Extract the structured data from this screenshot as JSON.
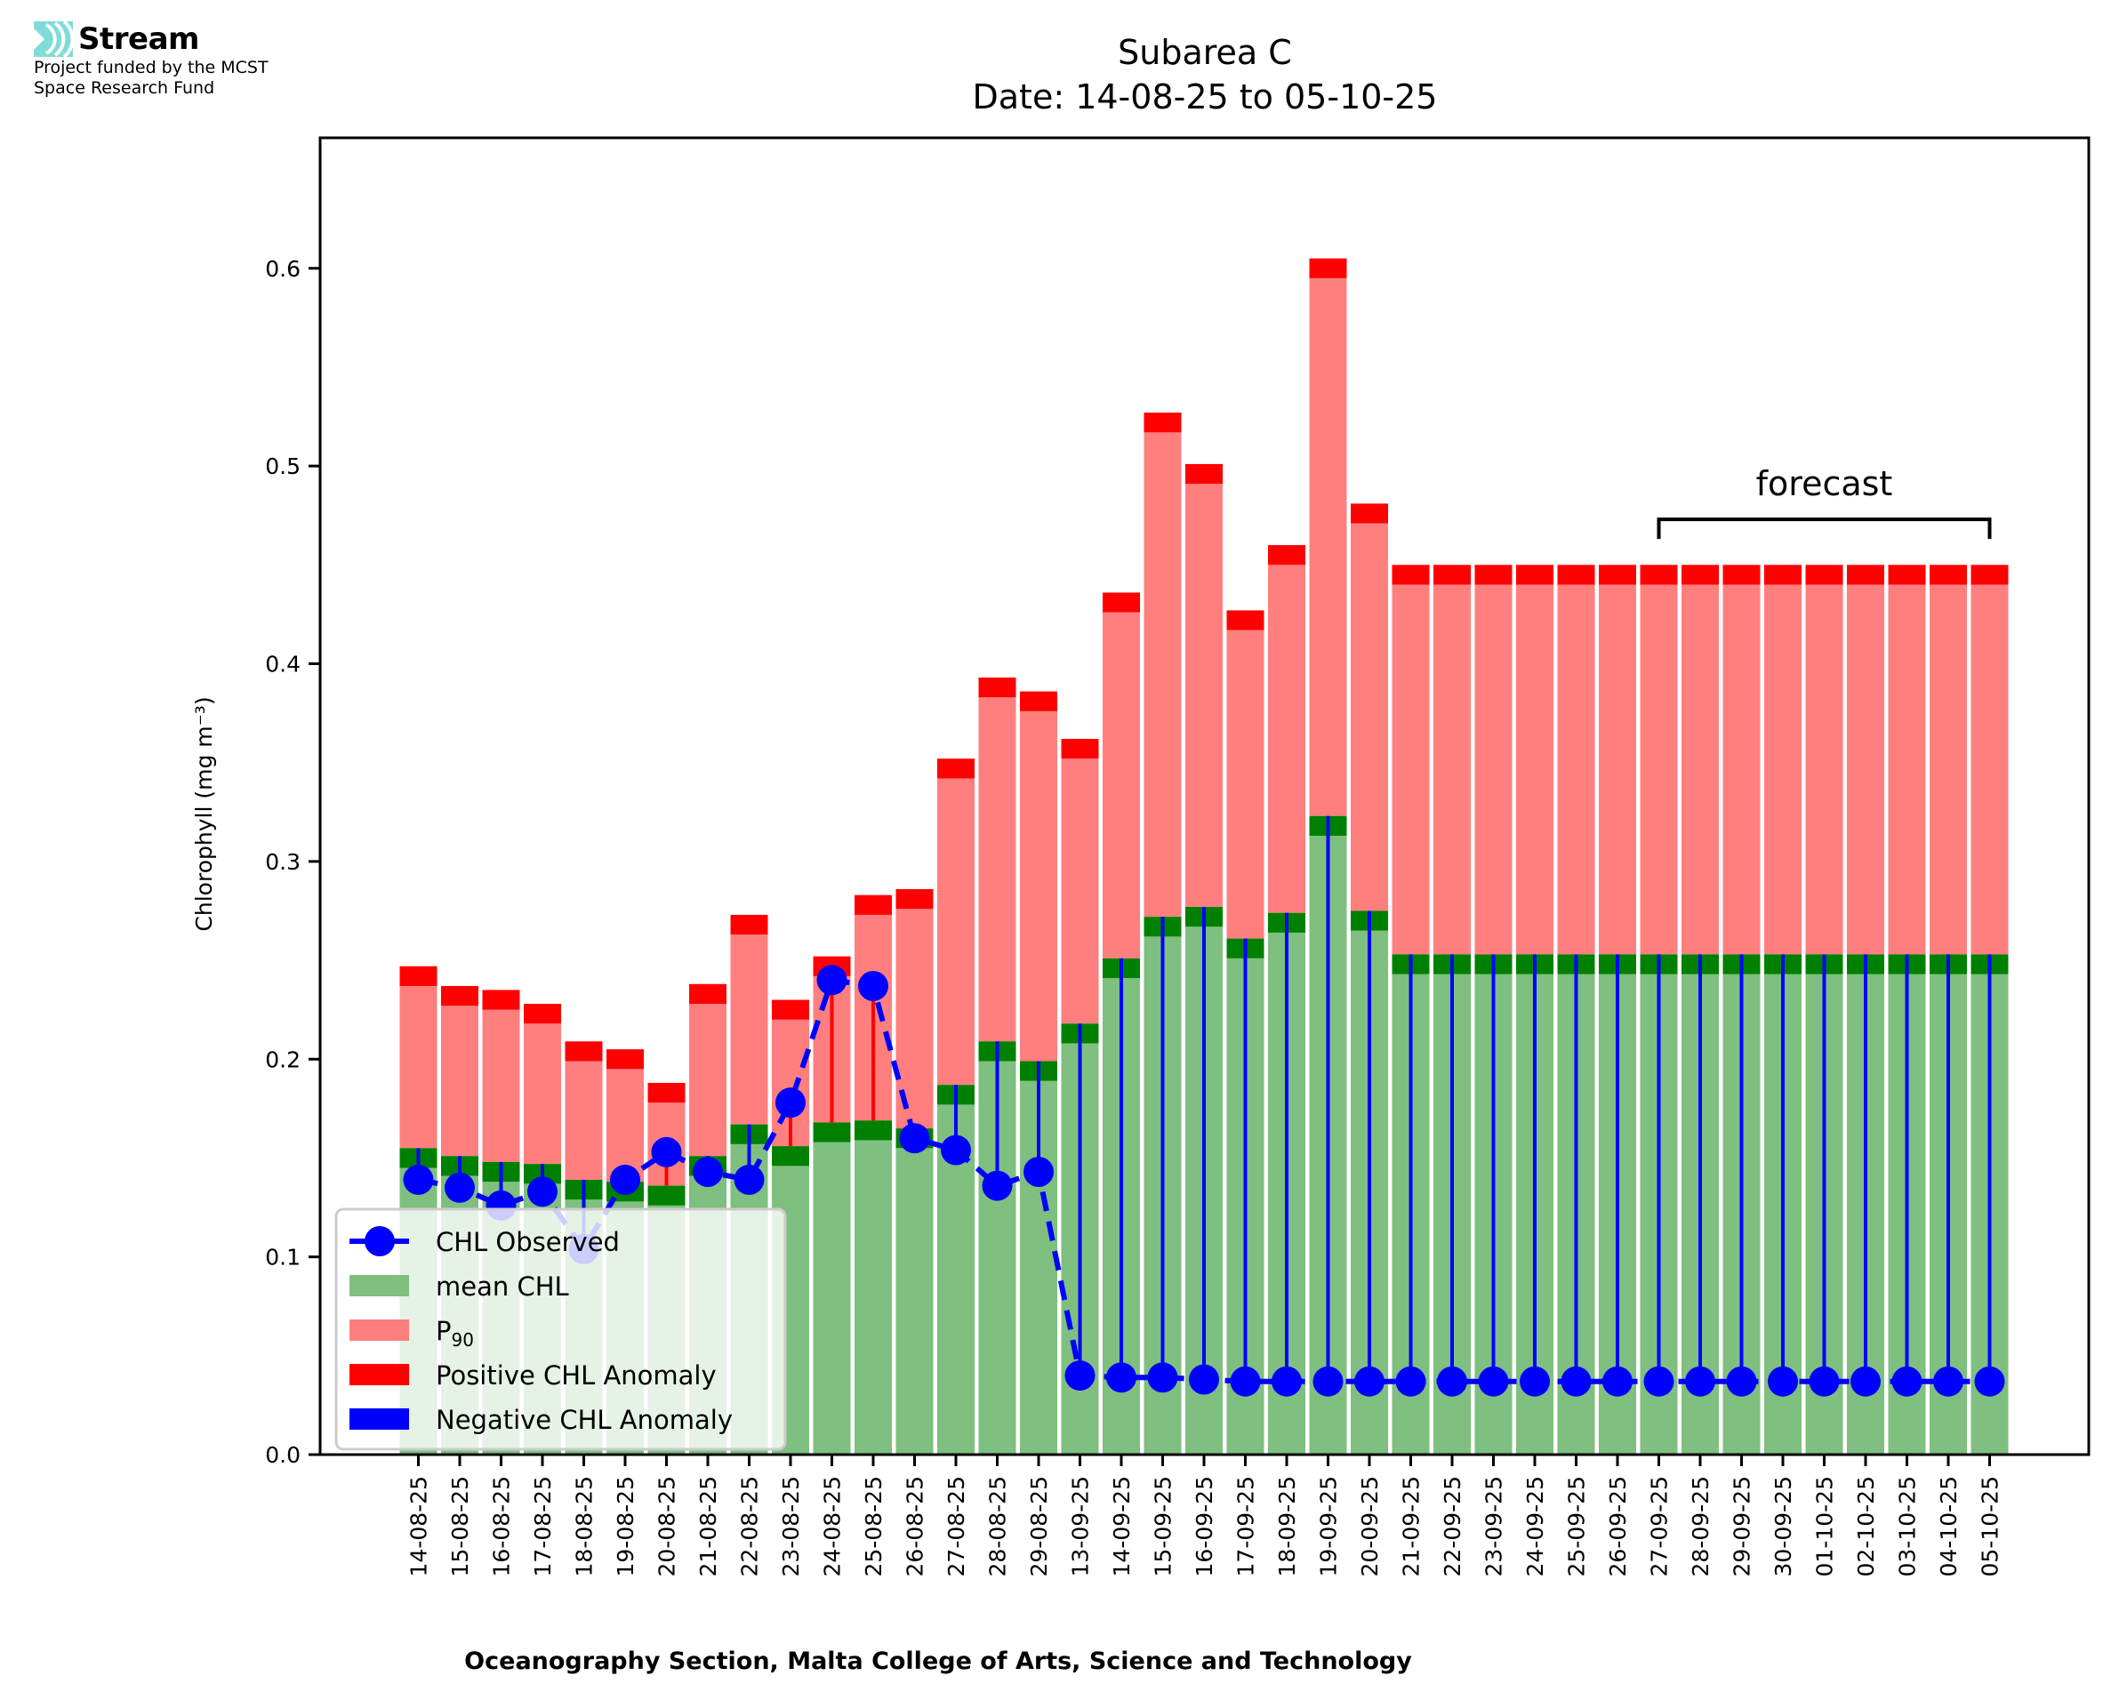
{
  "logo": {
    "name": "Stream",
    "funding_line1": "Project funded by the MCST",
    "funding_line2": "Space Research Fund",
    "icon": "stream-waves-icon",
    "accent": "#7fdcd8"
  },
  "chart_data": {
    "type": "bar",
    "title": "Subarea C",
    "subtitle": "Date: 14-08-25 to 05-10-25",
    "xlabel": "Oceanography Section, Malta College of Arts, Science and Technology",
    "ylabel": "Chlorophyll (mg m⁻³)",
    "ylim": [
      0,
      0.666
    ],
    "yticks": [
      0.0,
      0.1,
      0.2,
      0.3,
      0.4,
      0.5,
      0.6
    ],
    "ytick_labels": [
      "0.0",
      "0.1",
      "0.2",
      "0.3",
      "0.4",
      "0.5",
      "0.6"
    ],
    "grid": false,
    "legend_position": "lower-left",
    "anomaly_band_height": 0.01,
    "categories": [
      "14-08-25",
      "15-08-25",
      "16-08-25",
      "17-08-25",
      "18-08-25",
      "19-08-25",
      "20-08-25",
      "21-08-25",
      "22-08-25",
      "23-08-25",
      "24-08-25",
      "25-08-25",
      "26-08-25",
      "27-08-25",
      "28-08-25",
      "29-08-25",
      "13-09-25",
      "14-09-25",
      "15-09-25",
      "16-09-25",
      "17-09-25",
      "18-09-25",
      "19-09-25",
      "20-09-25",
      "21-09-25",
      "22-09-25",
      "23-09-25",
      "24-09-25",
      "25-09-25",
      "26-09-25",
      "27-09-25",
      "28-09-25",
      "29-09-25",
      "30-09-25",
      "01-10-25",
      "02-10-25",
      "03-10-25",
      "04-10-25",
      "05-10-25"
    ],
    "series": [
      {
        "name": "mean CHL",
        "color": "#7fbf7f",
        "band_color": "#008000",
        "values": [
          0.145,
          0.141,
          0.138,
          0.137,
          0.129,
          0.128,
          0.126,
          0.141,
          0.157,
          0.146,
          0.158,
          0.159,
          0.155,
          0.177,
          0.199,
          0.189,
          0.208,
          0.241,
          0.262,
          0.267,
          0.251,
          0.264,
          0.313,
          0.265,
          0.243,
          0.243,
          0.243,
          0.243,
          0.243,
          0.243,
          0.243,
          0.243,
          0.243,
          0.243,
          0.243,
          0.243,
          0.243,
          0.243,
          0.243
        ]
      },
      {
        "name": "P90",
        "label_main": "P",
        "label_sub": "90",
        "color": "#ff7f7f",
        "band_color": "#ff0000",
        "values": [
          0.237,
          0.227,
          0.225,
          0.218,
          0.199,
          0.195,
          0.178,
          0.228,
          0.263,
          0.22,
          0.242,
          0.273,
          0.276,
          0.342,
          0.383,
          0.376,
          0.352,
          0.426,
          0.517,
          0.491,
          0.417,
          0.45,
          0.595,
          0.471,
          0.44,
          0.44,
          0.44,
          0.44,
          0.44,
          0.44,
          0.44,
          0.44,
          0.44,
          0.44,
          0.44,
          0.44,
          0.44,
          0.44,
          0.44
        ]
      },
      {
        "name": "CHL Observed",
        "color": "#0000ff",
        "style": "dashed line with circle markers",
        "values": [
          0.139,
          0.135,
          0.126,
          0.133,
          0.104,
          0.139,
          0.153,
          0.143,
          0.139,
          0.178,
          0.24,
          0.237,
          0.16,
          0.154,
          0.136,
          0.143,
          0.04,
          0.039,
          0.039,
          0.038,
          0.037,
          0.037,
          0.037,
          0.037,
          0.037,
          0.037,
          0.037,
          0.037,
          0.037,
          0.037,
          0.037,
          0.037,
          0.037,
          0.037,
          0.037,
          0.037,
          0.037,
          0.037,
          0.037
        ]
      }
    ],
    "anomaly_colors": {
      "positive": "#ff0000",
      "negative": "#0000ff"
    },
    "legend": [
      {
        "label": "CHL Observed",
        "kind": "line-marker",
        "color": "#0000ff"
      },
      {
        "label": "mean CHL",
        "kind": "patch",
        "color": "#7fbf7f"
      },
      {
        "label": "P90",
        "label_main": "P",
        "label_sub": "90",
        "kind": "patch",
        "color": "#ff7f7f"
      },
      {
        "label": "Positive CHL Anomaly",
        "kind": "patch",
        "color": "#ff0000"
      },
      {
        "label": "Negative CHL Anomaly",
        "kind": "patch",
        "color": "#0000ff"
      }
    ],
    "annotation": {
      "text": "forecast",
      "from": "27-09-25",
      "to": "05-10-25",
      "y": 0.473
    }
  }
}
